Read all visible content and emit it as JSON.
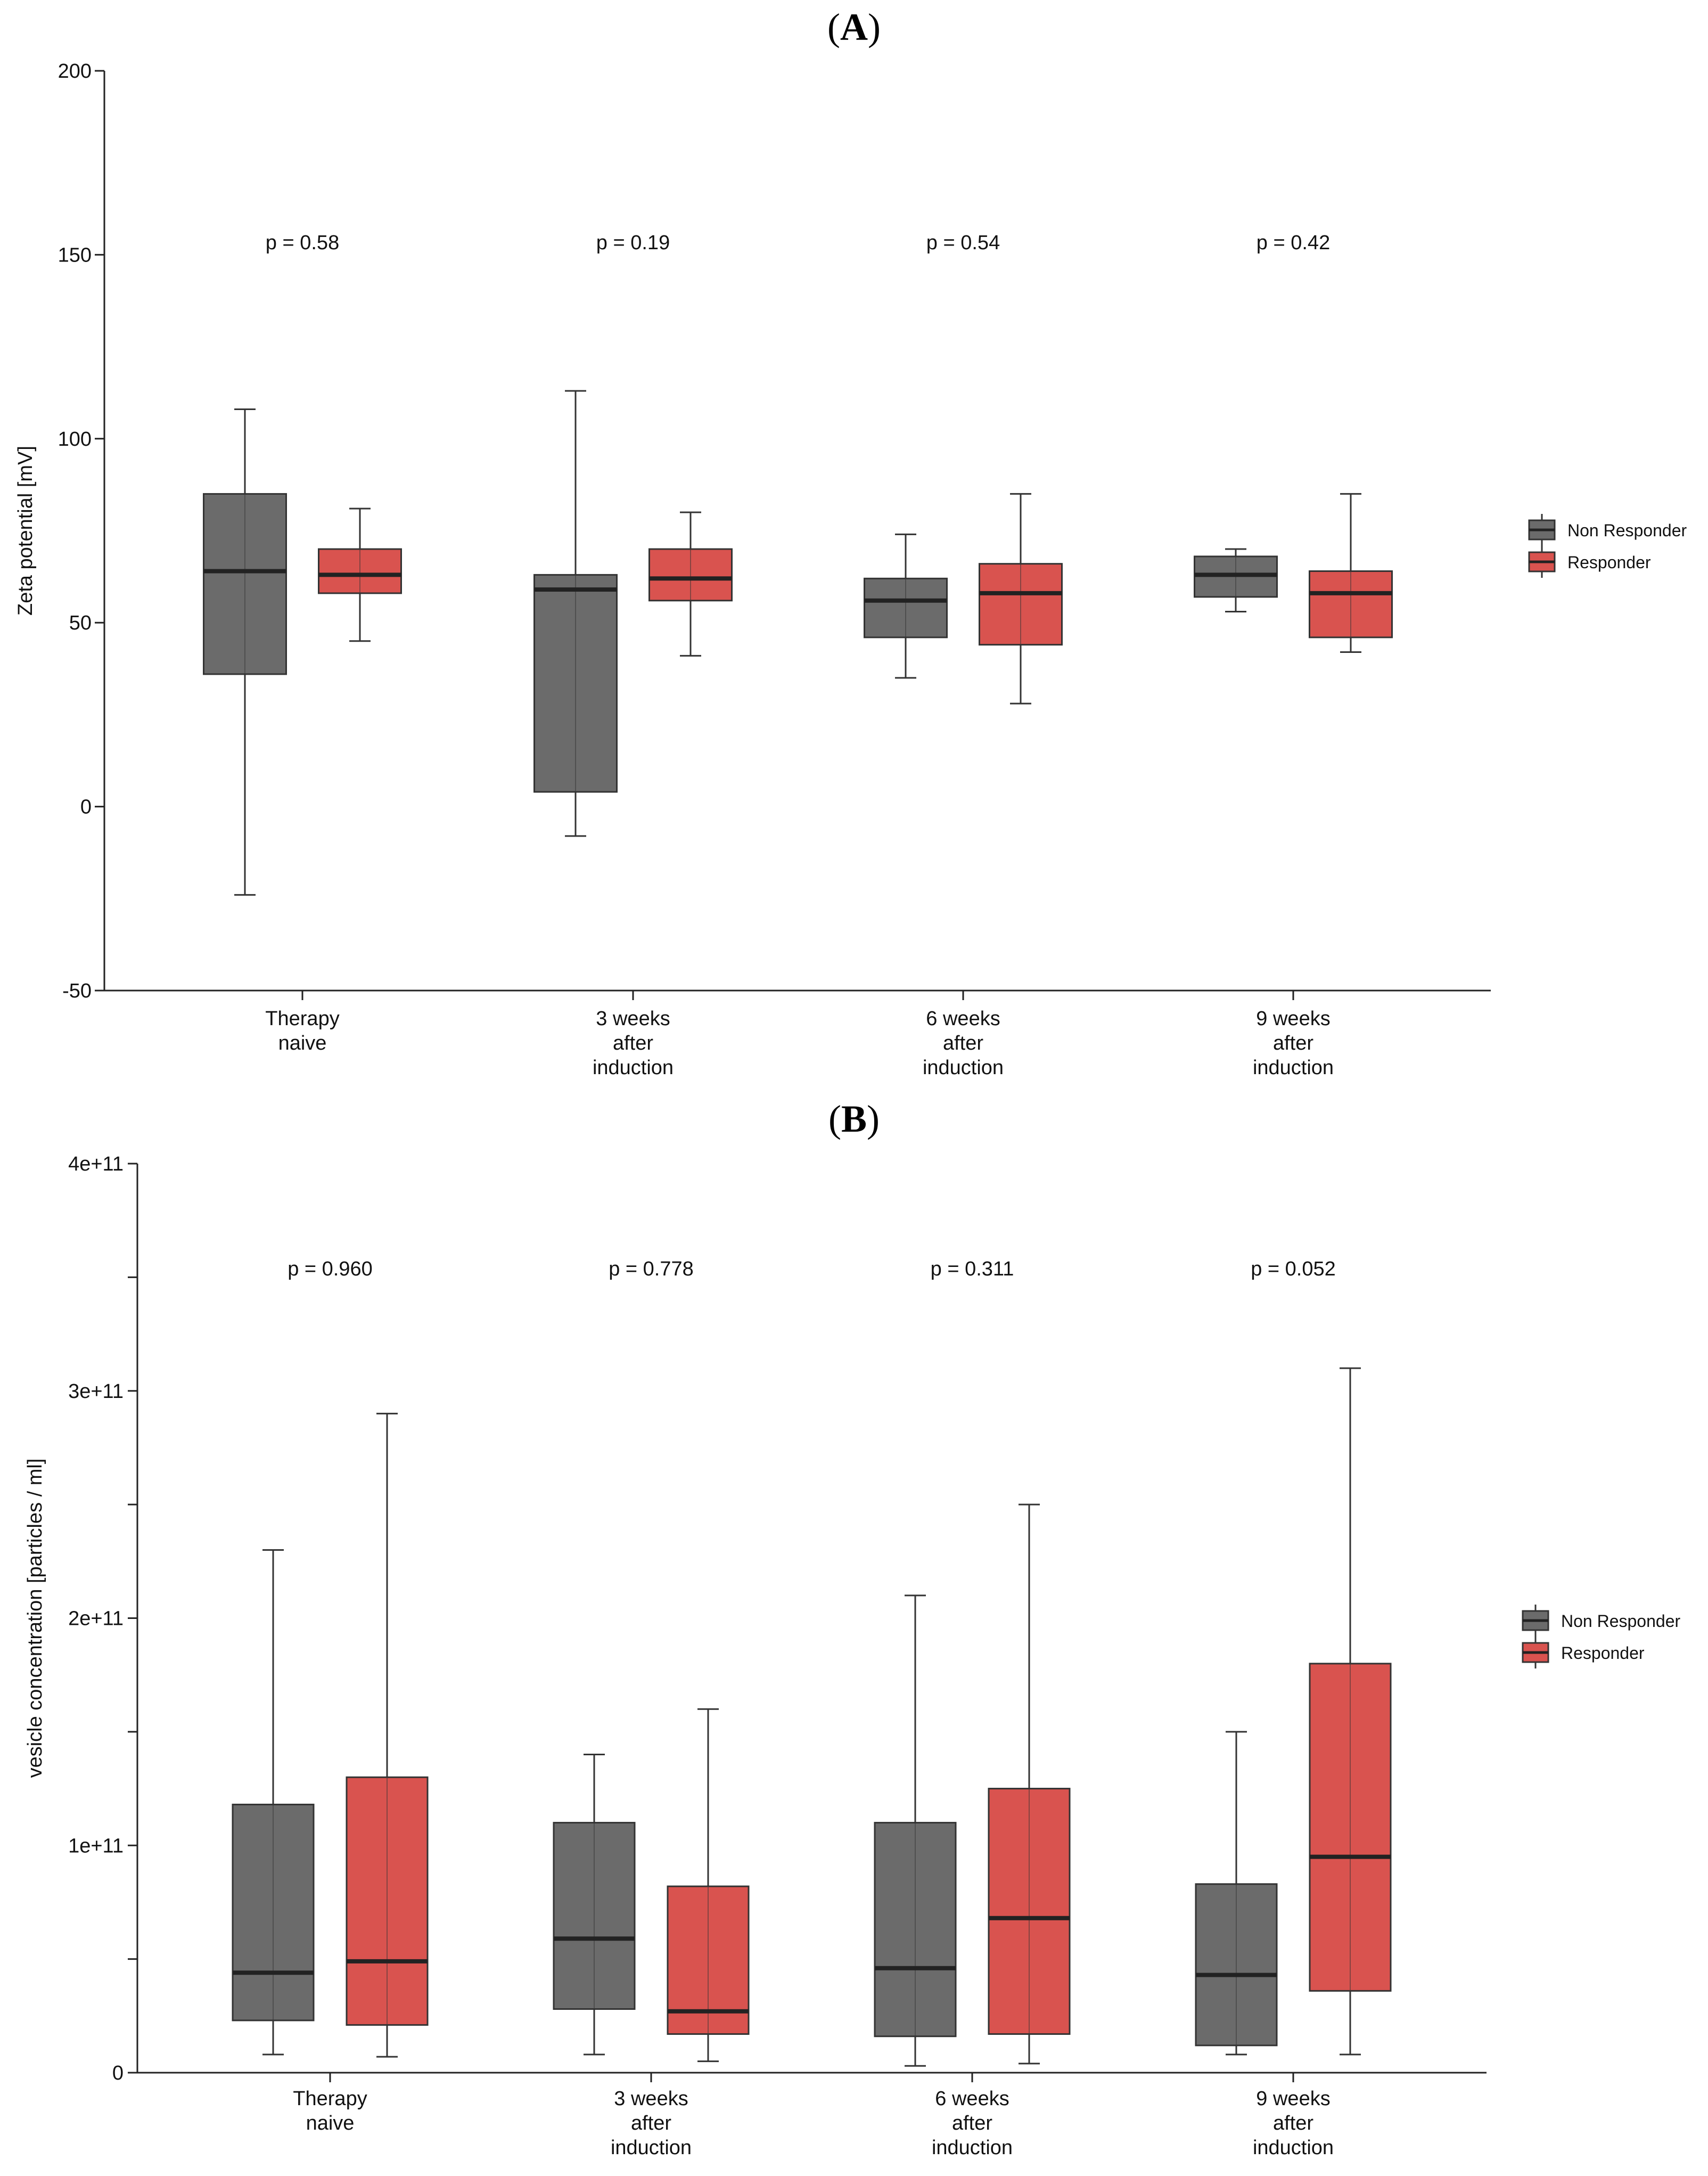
{
  "chart_data": [
    {
      "type": "box",
      "panel_label": "A",
      "title": "",
      "xlabel": "",
      "ylabel": "Zeta potential [mV]",
      "ylim": [
        -50,
        200
      ],
      "yticks": [
        -50,
        0,
        50,
        100,
        150,
        200
      ],
      "ytick_labels": [
        "-50",
        "0",
        "50",
        "100",
        "150",
        "200"
      ],
      "categories": [
        [
          "Therapy",
          "naive"
        ],
        [
          "3 weeks",
          "after",
          "induction"
        ],
        [
          "6 weeks",
          "after",
          "induction"
        ],
        [
          "9 weeks",
          "after",
          "induction"
        ]
      ],
      "p_values": [
        "p = 0.58",
        "p = 0.19",
        "p = 0.54",
        "p = 0.42"
      ],
      "legend": [
        "Non Responder",
        "Responder"
      ],
      "legend_position": "right",
      "colors": {
        "Non Responder": "#6b6b6b",
        "Responder": "#d9534f"
      },
      "series": [
        {
          "name": "Non Responder",
          "boxes": [
            {
              "min": -24,
              "q1": 36,
              "median": 64,
              "q3": 85,
              "max": 108
            },
            {
              "min": -8,
              "q1": 4,
              "median": 59,
              "q3": 63,
              "max": 113
            },
            {
              "min": 35,
              "q1": 46,
              "median": 56,
              "q3": 62,
              "max": 74
            },
            {
              "min": 53,
              "q1": 57,
              "median": 63,
              "q3": 68,
              "max": 70
            }
          ]
        },
        {
          "name": "Responder",
          "boxes": [
            {
              "min": 45,
              "q1": 58,
              "median": 63,
              "q3": 70,
              "max": 81
            },
            {
              "min": 41,
              "q1": 56,
              "median": 62,
              "q3": 70,
              "max": 80
            },
            {
              "min": 28,
              "q1": 44,
              "median": 58,
              "q3": 66,
              "max": 85
            },
            {
              "min": 42,
              "q1": 46,
              "median": 58,
              "q3": 64,
              "max": 85
            }
          ]
        }
      ]
    },
    {
      "type": "box",
      "panel_label": "B",
      "title": "",
      "xlabel": "",
      "ylabel": "vesicle concentration [particles / ml]",
      "ylim": [
        0,
        400000000000.0
      ],
      "yticks": [
        0,
        50000000000.0,
        100000000000.0,
        150000000000.0,
        200000000000.0,
        250000000000.0,
        300000000000.0,
        350000000000.0,
        400000000000.0
      ],
      "ytick_labels": [
        "0",
        "",
        "1e+11",
        "",
        "2e+11",
        "",
        "3e+11",
        "",
        "4e+11"
      ],
      "categories": [
        [
          "Therapy",
          "naive"
        ],
        [
          "3 weeks",
          "after",
          "induction"
        ],
        [
          "6 weeks",
          "after",
          "induction"
        ],
        [
          "9 weeks",
          "after",
          "induction"
        ]
      ],
      "p_values": [
        "p = 0.960",
        "p = 0.778",
        "p = 0.311",
        "p = 0.052"
      ],
      "legend": [
        "Non Responder",
        "Responder"
      ],
      "legend_position": "right",
      "colors": {
        "Non Responder": "#6b6b6b",
        "Responder": "#d9534f"
      },
      "series": [
        {
          "name": "Non Responder",
          "boxes": [
            {
              "min": 8000000000.0,
              "q1": 23000000000.0,
              "median": 44000000000.0,
              "q3": 118000000000.0,
              "max": 230000000000.0
            },
            {
              "min": 8000000000.0,
              "q1": 28000000000.0,
              "median": 59000000000.0,
              "q3": 110000000000.0,
              "max": 140000000000.0
            },
            {
              "min": 3000000000.0,
              "q1": 16000000000.0,
              "median": 46000000000.0,
              "q3": 110000000000.0,
              "max": 210000000000.0
            },
            {
              "min": 8000000000.0,
              "q1": 12000000000.0,
              "median": 43000000000.0,
              "q3": 83000000000.0,
              "max": 150000000000.0
            }
          ]
        },
        {
          "name": "Responder",
          "boxes": [
            {
              "min": 7000000000.0,
              "q1": 21000000000.0,
              "median": 49000000000.0,
              "q3": 130000000000.0,
              "max": 290000000000.0
            },
            {
              "min": 5000000000.0,
              "q1": 17000000000.0,
              "median": 27000000000.0,
              "q3": 82000000000.0,
              "max": 160000000000.0
            },
            {
              "min": 4000000000.0,
              "q1": 17000000000.0,
              "median": 68000000000.0,
              "q3": 125000000000.0,
              "max": 250000000000.0
            },
            {
              "min": 8000000000.0,
              "q1": 36000000000.0,
              "median": 95000000000.0,
              "q3": 180000000000.0,
              "max": 310000000000.0
            }
          ]
        }
      ]
    }
  ]
}
